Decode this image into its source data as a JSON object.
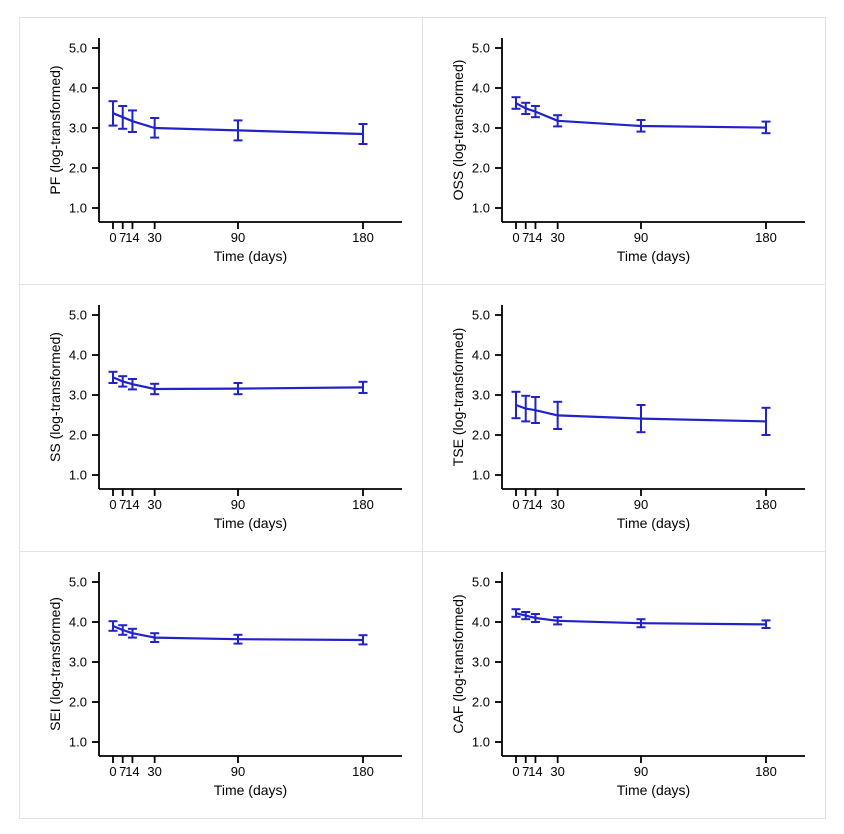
{
  "style": {
    "line_color": "#2222cc",
    "axis_color": "#000000",
    "text_color": "#000000",
    "panel_border_color": "#e3e3e3",
    "background": "#ffffff"
  },
  "chart_data": [
    {
      "type": "line",
      "name": "PF",
      "title": "",
      "ylabel": "PF (log-transformed)",
      "xlabel": "Time (days)",
      "x": [
        0,
        7,
        14,
        30,
        90,
        180
      ],
      "x_tick_labels": [
        "0",
        "7",
        "14",
        "30",
        "90",
        "180"
      ],
      "y_ticks": [
        1.0,
        2.0,
        3.0,
        4.0,
        5.0
      ],
      "y_tick_labels": [
        "1.0",
        "2.0",
        "3.0",
        "4.0",
        "5.0"
      ],
      "ylim": [
        0.6,
        5.25
      ],
      "grid": false,
      "legend": null,
      "series": [
        {
          "name": "PF",
          "values": [
            3.37,
            3.27,
            3.17,
            3.0,
            2.94,
            2.85
          ],
          "ci_lower": [
            3.06,
            2.98,
            2.9,
            2.76,
            2.69,
            2.6
          ],
          "ci_upper": [
            3.67,
            3.55,
            3.44,
            3.25,
            3.19,
            3.1
          ]
        }
      ]
    },
    {
      "type": "line",
      "name": "OSS",
      "title": "",
      "ylabel": "OSS (log-transformed)",
      "xlabel": "Time (days)",
      "x": [
        0,
        7,
        14,
        30,
        90,
        180
      ],
      "x_tick_labels": [
        "0",
        "7",
        "14",
        "30",
        "90",
        "180"
      ],
      "y_ticks": [
        1.0,
        2.0,
        3.0,
        4.0,
        5.0
      ],
      "y_tick_labels": [
        "1.0",
        "2.0",
        "3.0",
        "4.0",
        "5.0"
      ],
      "ylim": [
        0.6,
        5.25
      ],
      "grid": false,
      "legend": null,
      "series": [
        {
          "name": "OSS",
          "values": [
            3.62,
            3.49,
            3.41,
            3.18,
            3.05,
            3.01
          ],
          "ci_lower": [
            3.48,
            3.35,
            3.27,
            3.04,
            2.91,
            2.87
          ],
          "ci_upper": [
            3.77,
            3.63,
            3.55,
            3.32,
            3.2,
            3.16
          ]
        }
      ]
    },
    {
      "type": "line",
      "name": "SS",
      "title": "",
      "ylabel": "SS (log-transformed)",
      "xlabel": "Time (days)",
      "x": [
        0,
        7,
        14,
        30,
        90,
        180
      ],
      "x_tick_labels": [
        "0",
        "7",
        "14",
        "30",
        "90",
        "180"
      ],
      "y_ticks": [
        1.0,
        2.0,
        3.0,
        4.0,
        5.0
      ],
      "y_tick_labels": [
        "1.0",
        "2.0",
        "3.0",
        "4.0",
        "5.0"
      ],
      "ylim": [
        0.6,
        5.25
      ],
      "grid": false,
      "legend": null,
      "series": [
        {
          "name": "SS",
          "values": [
            3.44,
            3.34,
            3.27,
            3.15,
            3.16,
            3.19
          ],
          "ci_lower": [
            3.3,
            3.21,
            3.14,
            3.02,
            3.02,
            3.05
          ],
          "ci_upper": [
            3.58,
            3.47,
            3.4,
            3.28,
            3.3,
            3.33
          ]
        }
      ]
    },
    {
      "type": "line",
      "name": "TSE",
      "title": "",
      "ylabel": "TSE (log-transformed)",
      "xlabel": "Time (days)",
      "x": [
        0,
        7,
        14,
        30,
        90,
        180
      ],
      "x_tick_labels": [
        "0",
        "7",
        "14",
        "30",
        "90",
        "180"
      ],
      "y_ticks": [
        1.0,
        2.0,
        3.0,
        4.0,
        5.0
      ],
      "y_tick_labels": [
        "1.0",
        "2.0",
        "3.0",
        "4.0",
        "5.0"
      ],
      "ylim": [
        0.6,
        5.25
      ],
      "grid": false,
      "legend": null,
      "series": [
        {
          "name": "TSE",
          "values": [
            2.75,
            2.66,
            2.62,
            2.49,
            2.41,
            2.34
          ],
          "ci_lower": [
            2.42,
            2.34,
            2.3,
            2.15,
            2.07,
            2.0
          ],
          "ci_upper": [
            3.08,
            2.98,
            2.95,
            2.83,
            2.75,
            2.68
          ]
        }
      ]
    },
    {
      "type": "line",
      "name": "SEI",
      "title": "",
      "ylabel": "SEI (log-transformed)",
      "xlabel": "Time (days)",
      "x": [
        0,
        7,
        14,
        30,
        90,
        180
      ],
      "x_tick_labels": [
        "0",
        "7",
        "14",
        "30",
        "90",
        "180"
      ],
      "y_ticks": [
        1.0,
        2.0,
        3.0,
        4.0,
        5.0
      ],
      "y_tick_labels": [
        "1.0",
        "2.0",
        "3.0",
        "4.0",
        "5.0"
      ],
      "ylim": [
        0.6,
        5.25
      ],
      "grid": false,
      "legend": null,
      "series": [
        {
          "name": "SEI",
          "values": [
            3.9,
            3.8,
            3.72,
            3.61,
            3.57,
            3.55
          ],
          "ci_lower": [
            3.78,
            3.68,
            3.61,
            3.5,
            3.46,
            3.44
          ],
          "ci_upper": [
            4.02,
            3.92,
            3.83,
            3.72,
            3.68,
            3.67
          ]
        }
      ]
    },
    {
      "type": "line",
      "name": "CAF",
      "title": "",
      "ylabel": "CAF (log-transformed)",
      "xlabel": "Time (days)",
      "x": [
        0,
        7,
        14,
        30,
        90,
        180
      ],
      "x_tick_labels": [
        "0",
        "7",
        "14",
        "30",
        "90",
        "180"
      ],
      "y_ticks": [
        1.0,
        2.0,
        3.0,
        4.0,
        5.0
      ],
      "y_tick_labels": [
        "1.0",
        "2.0",
        "3.0",
        "4.0",
        "5.0"
      ],
      "ylim": [
        0.6,
        5.25
      ],
      "grid": false,
      "legend": null,
      "series": [
        {
          "name": "CAF",
          "values": [
            4.22,
            4.16,
            4.1,
            4.03,
            3.97,
            3.94
          ],
          "ci_lower": [
            4.13,
            4.07,
            4.0,
            3.94,
            3.87,
            3.85
          ],
          "ci_upper": [
            4.32,
            4.25,
            4.2,
            4.12,
            4.07,
            4.04
          ]
        }
      ]
    }
  ]
}
